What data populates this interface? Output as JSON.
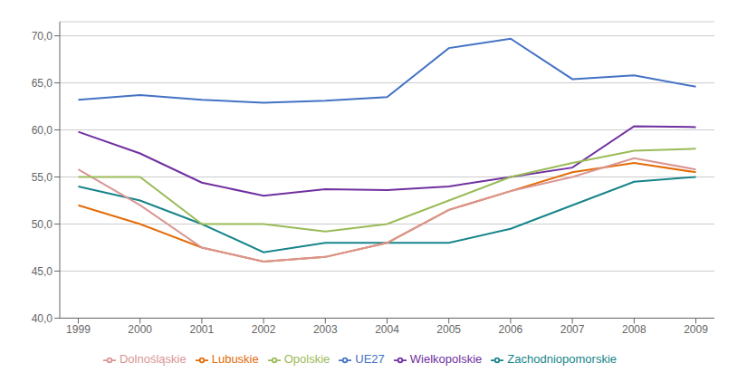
{
  "chart_data": {
    "type": "line",
    "x": [
      1999,
      2000,
      2001,
      2002,
      2003,
      2004,
      2005,
      2006,
      2007,
      2008,
      2009
    ],
    "xlim": [
      1998.7,
      2009.3
    ],
    "xticks": [
      1999,
      2000,
      2001,
      2002,
      2003,
      2004,
      2005,
      2006,
      2007,
      2008,
      2009
    ],
    "ylim": [
      40.0,
      71.5
    ],
    "yticks": [
      {
        "value": 40.0,
        "label": "40,0"
      },
      {
        "value": 45.0,
        "label": "45,0"
      },
      {
        "value": 50.0,
        "label": "50,0"
      },
      {
        "value": 55.0,
        "label": "55,0"
      },
      {
        "value": 60.0,
        "label": "60,0"
      },
      {
        "value": 65.0,
        "label": "65,0"
      },
      {
        "value": 70.0,
        "label": "70,0"
      }
    ],
    "grid": true,
    "legend": "bottom",
    "series": [
      {
        "name": "UE27",
        "color": "#4472C4",
        "values": [
          63.2,
          63.7,
          63.2,
          62.9,
          63.1,
          63.5,
          68.7,
          69.7,
          65.4,
          65.8,
          64.6
        ]
      },
      {
        "name": "Wielkopolskie",
        "color": "#7030A0",
        "values": [
          59.8,
          57.5,
          54.4,
          53.0,
          53.7,
          53.6,
          54.0,
          55.0,
          56.0,
          60.4,
          60.3
        ]
      },
      {
        "name": "Zachodniopomorskie",
        "color": "#17858A",
        "values": [
          54.0,
          52.5,
          50.0,
          47.0,
          48.0,
          48.0,
          48.0,
          49.5,
          52.0,
          54.5,
          55.0
        ]
      },
      {
        "name": "Lubuskie",
        "color": "#E36C09",
        "values": [
          52.0,
          50.0,
          47.5,
          46.0,
          46.5,
          48.0,
          51.5,
          53.5,
          55.5,
          56.5,
          55.5
        ]
      },
      {
        "name": "Dolnośląskie",
        "color": "#D99694",
        "values": [
          55.8,
          52.0,
          47.5,
          46.0,
          46.5,
          48.0,
          51.5,
          53.5,
          55.0,
          57.0,
          55.8
        ]
      },
      {
        "name": "Opolskie",
        "color": "#9BBB59",
        "values": [
          55.0,
          55.0,
          50.0,
          50.0,
          49.2,
          50.0,
          52.5,
          55.0,
          56.5,
          57.8,
          58.0
        ]
      }
    ]
  }
}
